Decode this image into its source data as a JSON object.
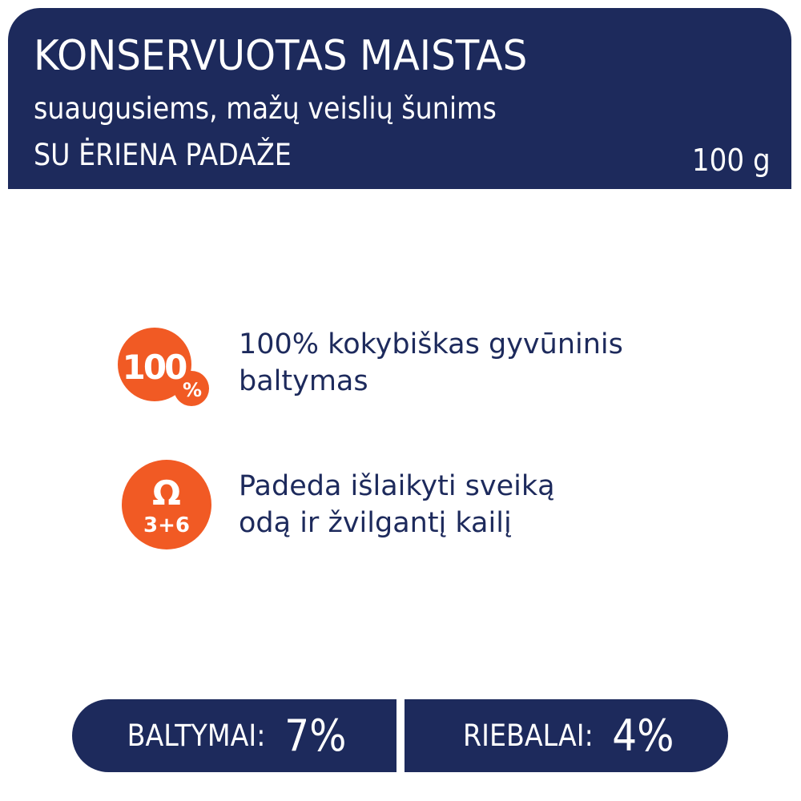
{
  "header": {
    "title": "KONSERVUOTAS MAISTAS",
    "subtitle": "suaugusiems, mažų veislių šunims",
    "flavor": "SU ĖRIENA PADAŽE",
    "weight": "100 g"
  },
  "features": [
    {
      "icon": "100-percent-badge-icon",
      "badge_main": "100",
      "badge_small": "%",
      "line1": "100% kokybiškas gyvūninis",
      "line2": "baltymas"
    },
    {
      "icon": "omega-3-6-icon",
      "badge_main": "Ω",
      "badge_small": "3+6",
      "line1": "Padeda išlaikyti sveiką",
      "line2": "odą ir žvilgantį kailį"
    }
  ],
  "nutrition": [
    {
      "label": "BALTYMAI:",
      "value": "7%"
    },
    {
      "label": "RIEBALAI:",
      "value": "4%"
    }
  ],
  "colors": {
    "navy": "#1d2a5c",
    "accent": "#f15a24"
  }
}
